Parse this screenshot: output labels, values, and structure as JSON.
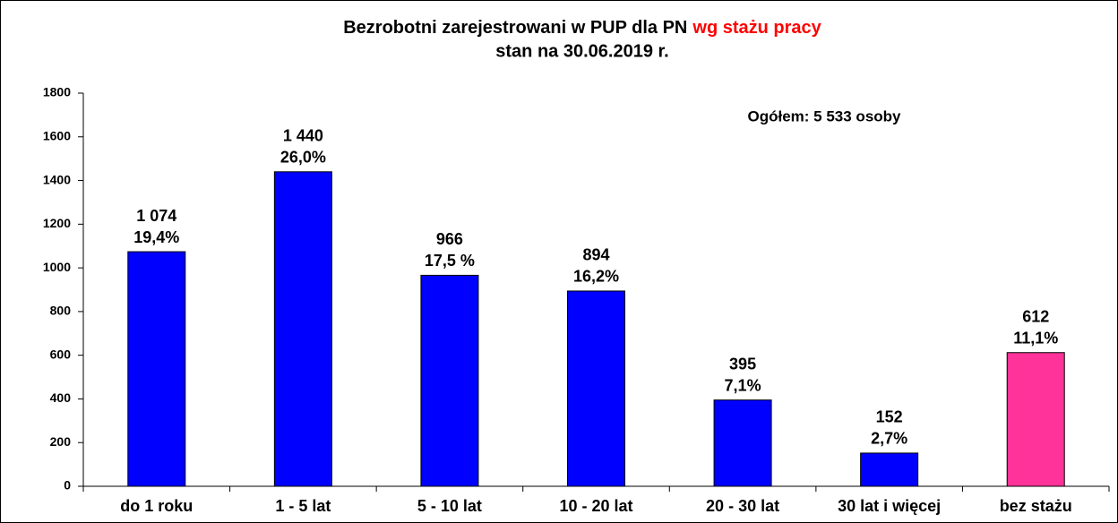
{
  "chart_data": {
    "type": "bar",
    "title": "Bezrobotni zarejestrowani w PUP dla PN",
    "title_highlight": "wg stażu pracy",
    "subtitle": "stan na 30.06.2019 r.",
    "annotation": "Ogółem:  5 533 osoby",
    "categories": [
      "do 1 roku",
      "1 - 5 lat",
      "5 - 10 lat",
      "10 - 20 lat",
      "20 - 30 lat",
      "30 lat i więcej",
      "bez stażu"
    ],
    "values": [
      1074,
      1440,
      966,
      894,
      395,
      152,
      612
    ],
    "value_labels": [
      "1 074",
      "1 440",
      "966",
      "894",
      "395",
      "152",
      "612"
    ],
    "share_labels": [
      "19,4%",
      "26,0%",
      "17,5 %",
      "16,2%",
      "7,1%",
      "2,7%",
      "11,1%"
    ],
    "colors": [
      "#0000ff",
      "#0000ff",
      "#0000ff",
      "#0000ff",
      "#0000ff",
      "#0000ff",
      "#ff3399"
    ],
    "ylim": [
      0,
      1800
    ],
    "yticks": [
      0,
      200,
      400,
      600,
      800,
      1000,
      1200,
      1400,
      1600,
      1800
    ],
    "grid": false
  }
}
